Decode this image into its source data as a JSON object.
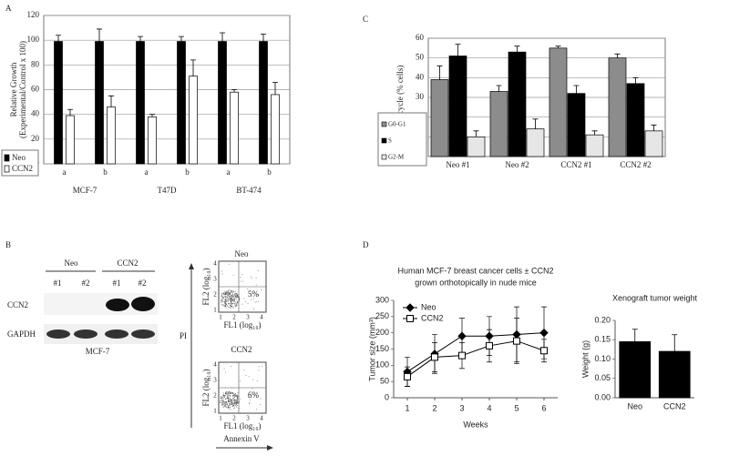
{
  "panel_labels": [
    "A",
    "B",
    "C",
    "D"
  ],
  "blot": {
    "groups": [
      "Neo",
      "CCN2"
    ],
    "lanes": [
      "#1",
      "#2",
      "#1",
      "#2"
    ],
    "rows": [
      "CCN2",
      "GAPDH"
    ],
    "cell_line": "MCF-7"
  },
  "flow": {
    "titles": [
      "Neo",
      "CCN2"
    ],
    "percents": [
      "5%",
      "6%"
    ],
    "ticks": [
      1,
      2,
      3,
      4
    ],
    "ylabel": "FL2 (log₁₀)",
    "xlabel": "FL1 (log₁₀)",
    "side_label": "PI",
    "arrow_label": "Annexin V"
  },
  "chart_data": [
    {
      "type": "bar",
      "ylabel": [
        "Relative Growth",
        "(Experimental/Control x 100)"
      ],
      "categories": [
        "a",
        "b",
        "a",
        "b",
        "a",
        "b"
      ],
      "group_labels": [
        "MCF-7",
        "T47D",
        "BT-474"
      ],
      "series": [
        {
          "name": "Neo",
          "color": "#000000",
          "values": [
            99,
            99,
            99,
            99,
            99,
            99
          ],
          "errors": [
            5,
            10,
            4,
            4,
            7,
            6
          ]
        },
        {
          "name": "CCN2",
          "color": "#ffffff",
          "values": [
            39,
            46,
            38,
            71,
            58,
            56
          ],
          "errors": [
            5,
            9,
            2,
            13,
            2,
            10
          ]
        }
      ],
      "ylim": [
        0,
        120
      ],
      "yticks": [
        0,
        20,
        40,
        60,
        80,
        100,
        120
      ],
      "grid": true,
      "legend": "outside-left"
    },
    {
      "type": "bar",
      "ylabel": [
        "Cell cycle (% cells)"
      ],
      "categories": [
        "Neo #1",
        "Neo #2",
        "CCN2 #1",
        "CCN2 #2"
      ],
      "series": [
        {
          "name": "G0-G1",
          "color": "#8c8c8c",
          "values": [
            39,
            33,
            55,
            50
          ],
          "errors": [
            7,
            3,
            1,
            2
          ]
        },
        {
          "name": "S",
          "color": "#000000",
          "values": [
            51,
            53,
            32,
            37
          ],
          "errors": [
            6,
            3,
            4,
            3
          ]
        },
        {
          "name": "G2-M",
          "color": "#e6e6e6",
          "values": [
            10,
            14,
            11,
            13
          ],
          "errors": [
            3,
            5,
            2,
            3
          ]
        }
      ],
      "ylim": [
        0,
        60
      ],
      "yticks": [
        10,
        20,
        30,
        40,
        50,
        60
      ],
      "grid": true,
      "legend": "lower-left"
    },
    {
      "type": "line",
      "title": [
        "Human MCF-7 breast cancer cells ± CCN2",
        "grown orthotopically in nude mice"
      ],
      "xlabel": "Weeks",
      "ylabel": [
        "Tumor size (mm³)"
      ],
      "x": [
        1,
        2,
        3,
        4,
        5,
        6
      ],
      "series": [
        {
          "name": "Neo",
          "color": "#000000",
          "marker": "diamond",
          "values": [
            80,
            135,
            190,
            190,
            195,
            200
          ],
          "errors": [
            45,
            60,
            55,
            60,
            85,
            80
          ]
        },
        {
          "name": "CCN2",
          "color": "#ffffff",
          "marker": "square",
          "values": [
            65,
            125,
            130,
            160,
            175,
            145
          ],
          "errors": [
            30,
            45,
            40,
            50,
            70,
            35
          ]
        }
      ],
      "xlim": [
        0.5,
        6.5
      ],
      "xticks": [
        1,
        2,
        3,
        4,
        5,
        6
      ],
      "ylim": [
        0,
        300
      ],
      "yticks": [
        0,
        50,
        100,
        150,
        200,
        250,
        300
      ],
      "grid": false,
      "legend": "upper-left"
    },
    {
      "type": "bar",
      "title": [
        "Xenograft tumor weight"
      ],
      "ylabel": [
        "Weight (g)"
      ],
      "categories": [
        "Neo",
        "CCN2"
      ],
      "series": [
        {
          "name": "Weight",
          "color": "#000000",
          "values": [
            0.145,
            0.12
          ],
          "errors": [
            0.032,
            0.043
          ]
        }
      ],
      "ylim": [
        0,
        0.2
      ],
      "yticks": [
        {
          "value": 0,
          "label": "0.00"
        },
        0.05,
        {
          "value": 0.1,
          "label": "0.10"
        },
        0.15,
        {
          "value": 0.2,
          "label": "0.20"
        }
      ],
      "grid": false,
      "legend": "none"
    }
  ]
}
